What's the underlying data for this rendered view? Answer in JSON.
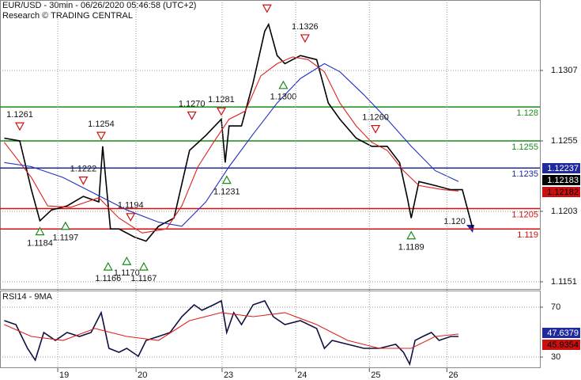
{
  "title": "EUR/USD - 30min - 06/26/2020 05:46:58 (UTC+2)",
  "subtitle": "Research © TRADING CENTRAL",
  "chart_data": [
    {
      "type": "line",
      "xlim": [
        0.255,
        7.22
      ],
      "ylim": [
        1.11457,
        1.1359
      ],
      "yticks": [
        1.1307,
        1.1255,
        1.1203,
        1.1151
      ],
      "grid": true,
      "series": [
        {
          "color": "#000000",
          "x": [
            0.31,
            0.51,
            0.66,
            0.77,
            0.92,
            1.12,
            1.33,
            1.53,
            1.58,
            1.68,
            1.79,
            1.99,
            2.14,
            2.3,
            2.5,
            2.7,
            2.91,
            3.11,
            3.16,
            3.21,
            3.37,
            3.52,
            3.67,
            3.72,
            3.83,
            3.93,
            4.13,
            4.34,
            4.49,
            4.64,
            4.85,
            5.05,
            5.25,
            5.41,
            5.51,
            5.56,
            5.66,
            5.87,
            6.07,
            6.22,
            6.35
          ],
          "values": [
            1.1257,
            1.1255,
            1.1219,
            1.1196,
            1.1204,
            1.1207,
            1.1214,
            1.121,
            1.1251,
            1.119,
            1.119,
            1.1184,
            1.1181,
            1.1192,
            1.1198,
            1.1248,
            1.1259,
            1.1271,
            1.1239,
            1.1266,
            1.1266,
            1.1298,
            1.1336,
            1.1341,
            1.1318,
            1.1312,
            1.1318,
            1.1315,
            1.1283,
            1.1271,
            1.1257,
            1.1251,
            1.1251,
            1.1239,
            1.1213,
            1.1198,
            1.1225,
            1.1222,
            1.1219,
            1.1219,
            1.1191
          ]
        },
        {
          "color": "#e02020",
          "x": [
            0.31,
            0.66,
            0.87,
            1.17,
            1.53,
            1.79,
            2.09,
            2.4,
            2.6,
            2.81,
            3.01,
            3.21,
            3.42,
            3.62,
            3.83,
            4.03,
            4.23,
            4.44,
            4.64,
            4.85,
            5.05,
            5.25,
            5.46,
            5.66,
            5.97,
            6.17
          ],
          "values": [
            1.1254,
            1.1228,
            1.1207,
            1.1206,
            1.1213,
            1.1198,
            1.1187,
            1.119,
            1.1207,
            1.1236,
            1.1254,
            1.1271,
            1.1277,
            1.1303,
            1.1312,
            1.1317,
            1.1315,
            1.1306,
            1.1283,
            1.1266,
            1.1254,
            1.1248,
            1.1233,
            1.1222,
            1.1219,
            1.1218
          ]
        },
        {
          "color": "#2030c0",
          "x": [
            0.31,
            0.66,
            1.07,
            1.48,
            1.89,
            2.3,
            2.6,
            2.91,
            3.21,
            3.52,
            3.83,
            4.13,
            4.44,
            4.64,
            4.95,
            5.25,
            5.56,
            5.87,
            6.17
          ],
          "values": [
            1.1239,
            1.1236,
            1.1228,
            1.1216,
            1.1204,
            1.1195,
            1.1192,
            1.121,
            1.1236,
            1.126,
            1.1283,
            1.1301,
            1.1312,
            1.1306,
            1.1289,
            1.1271,
            1.1251,
            1.1233,
            1.1225
          ]
        }
      ],
      "levels": [
        {
          "value": 1.128,
          "color": "#1a8a1a"
        },
        {
          "value": 1.1255,
          "color": "#1a8a1a"
        },
        {
          "value": 1.1235,
          "color": "#1f2a9e"
        },
        {
          "value": 1.1205,
          "color": "#cc1010"
        },
        {
          "value": 1.119,
          "color": "#cc1010"
        }
      ],
      "annotations": [
        {
          "text": "1.1261",
          "x": 0.51,
          "y": 1.1266,
          "marker": "down"
        },
        {
          "text": "1.1184",
          "x": 0.77,
          "y": 1.1188,
          "marker": "up"
        },
        {
          "text": "1.1197",
          "x": 1.1,
          "y": 1.1192,
          "marker": "up"
        },
        {
          "text": "1.1222",
          "x": 1.33,
          "y": 1.1226,
          "marker": "down"
        },
        {
          "text": "1.1254",
          "x": 1.56,
          "y": 1.1259,
          "marker": "down"
        },
        {
          "text": "1.1194",
          "x": 1.94,
          "y": 1.1199,
          "marker": "down"
        },
        {
          "text": "1.1166",
          "x": 1.65,
          "y": 1.1162,
          "marker": "up"
        },
        {
          "text": "1.1170",
          "x": 1.89,
          "y": 1.1166,
          "marker": "up"
        },
        {
          "text": "1.1167",
          "x": 2.11,
          "y": 1.1162,
          "marker": "up"
        },
        {
          "text": "1.1270",
          "x": 2.73,
          "y": 1.1274,
          "marker": "down"
        },
        {
          "text": "1.1281",
          "x": 3.11,
          "y": 1.1277,
          "marker": "down"
        },
        {
          "text": "1.1231",
          "x": 3.18,
          "y": 1.1226,
          "marker": "up"
        },
        {
          "text": "1.1300",
          "x": 3.91,
          "y": 1.1296,
          "marker": "up"
        },
        {
          "text": "1.1326",
          "x": 4.19,
          "y": 1.1331,
          "marker": "down"
        },
        {
          "x": 3.7,
          "y": 1.1353,
          "marker": "down"
        },
        {
          "text": "1.1260",
          "x": 5.1,
          "y": 1.1264,
          "marker": "down"
        },
        {
          "text": "1.1189",
          "x": 5.56,
          "y": 1.1185,
          "marker": "up"
        },
        {
          "text": "1.120",
          "x": 5.98,
          "y": 1.1193
        }
      ],
      "badges": [
        {
          "value": 1.12237,
          "color": "#1f2a9e",
          "text_color": "#ffffff"
        },
        {
          "value": 1.12183,
          "color": "#000000",
          "text_color": "#ffffff"
        },
        {
          "value": 1.12182,
          "color": "#cc1010",
          "text_color": "#000000"
        }
      ]
    },
    {
      "type": "line",
      "title": "RSI14 - 9MA",
      "xlim": [
        0.255,
        7.22
      ],
      "ylim": [
        21.1,
        82.7
      ],
      "yticks": [
        70,
        30
      ],
      "grid": true,
      "xticks": [
        {
          "value": 1,
          "label": "19"
        },
        {
          "value": 2.01,
          "label": "20"
        },
        {
          "value": 3.12,
          "label": "23"
        },
        {
          "value": 4.07,
          "label": "24"
        },
        {
          "value": 5.02,
          "label": "25"
        },
        {
          "value": 6.02,
          "label": "26"
        }
      ],
      "series": [
        {
          "color": "#101040",
          "x": [
            0.31,
            0.46,
            0.61,
            0.71,
            0.82,
            0.97,
            1.12,
            1.28,
            1.43,
            1.56,
            1.66,
            1.79,
            1.89,
            2.04,
            2.14,
            2.3,
            2.45,
            2.6,
            2.76,
            2.86,
            3.01,
            3.11,
            3.18,
            3.27,
            3.37,
            3.52,
            3.67,
            3.78,
            3.93,
            4.13,
            4.34,
            4.44,
            4.54,
            4.74,
            4.95,
            5.15,
            5.36,
            5.46,
            5.54,
            5.61,
            5.71,
            5.82,
            5.92,
            6.07,
            6.17
          ],
          "values": [
            59.2,
            56.0,
            37.0,
            27.5,
            49.7,
            43.3,
            49.7,
            46.5,
            49.7,
            65.6,
            37.0,
            33.8,
            37.0,
            30.6,
            43.3,
            46.5,
            49.7,
            62.4,
            71.9,
            67.5,
            71.9,
            75.1,
            49.7,
            65.6,
            56.0,
            71.9,
            75.1,
            62.4,
            56.0,
            59.2,
            52.9,
            37.0,
            43.3,
            40.2,
            37.0,
            37.0,
            40.2,
            33.8,
            24.3,
            43.3,
            46.5,
            49.7,
            43.3,
            46.5,
            46.5
          ]
        },
        {
          "color": "#e02020",
          "x": [
            0.31,
            0.66,
            1.07,
            1.48,
            1.89,
            2.3,
            2.7,
            3.11,
            3.52,
            3.93,
            4.34,
            4.74,
            5.15,
            5.56,
            5.87,
            6.17
          ],
          "values": [
            56.0,
            46.5,
            43.3,
            52.9,
            46.5,
            43.3,
            59.2,
            65.6,
            62.4,
            65.6,
            56.0,
            43.3,
            37.0,
            37.0,
            46.5,
            48.4
          ]
        }
      ],
      "badges": [
        {
          "value": 47.6379,
          "color": "#1f2a9e",
          "text_color": "#ffffff"
        },
        {
          "value": 45.9354,
          "color": "#cc1010",
          "text_color": "#000000"
        }
      ]
    }
  ]
}
